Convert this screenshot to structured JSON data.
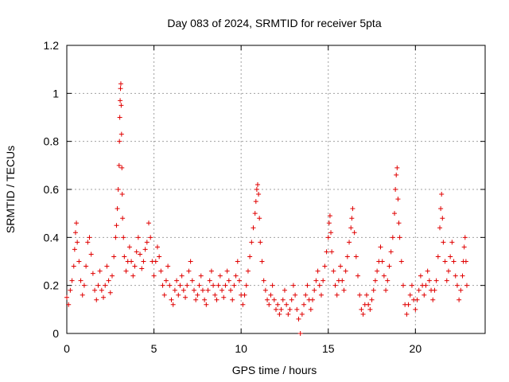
{
  "chart_data": {
    "type": "scatter",
    "title": "Day 083 of 2024, SRMTID for receiver 5pta",
    "xlabel": "GPS time / hours",
    "ylabel": "SRMTID / TECUs",
    "xlim": [
      0,
      24
    ],
    "ylim": [
      0,
      1.2
    ],
    "x_ticks": [
      0,
      5,
      10,
      15,
      20
    ],
    "y_ticks": [
      0,
      0.2,
      0.4,
      0.6,
      0.8,
      1.0,
      1.2
    ],
    "x_tick_labels": [
      "0",
      "5",
      "10",
      "15",
      "20"
    ],
    "y_tick_labels": [
      "0",
      "0.2",
      "0.4",
      "0.6",
      "0.8",
      "1",
      "1.2"
    ],
    "grid": true,
    "marker": "+",
    "series": [
      {
        "name": "SRMTID",
        "color": "#e00000",
        "points": [
          [
            0.0,
            0.15
          ],
          [
            0.1,
            0.12
          ],
          [
            0.2,
            0.18
          ],
          [
            0.3,
            0.22
          ],
          [
            0.4,
            0.28
          ],
          [
            0.45,
            0.35
          ],
          [
            0.5,
            0.42
          ],
          [
            0.55,
            0.46
          ],
          [
            0.6,
            0.38
          ],
          [
            0.7,
            0.3
          ],
          [
            0.8,
            0.22
          ],
          [
            0.9,
            0.16
          ],
          [
            1.0,
            0.2
          ],
          [
            1.1,
            0.28
          ],
          [
            1.2,
            0.38
          ],
          [
            1.3,
            0.4
          ],
          [
            1.4,
            0.33
          ],
          [
            1.5,
            0.25
          ],
          [
            1.6,
            0.18
          ],
          [
            1.7,
            0.14
          ],
          [
            1.8,
            0.2
          ],
          [
            1.9,
            0.26
          ],
          [
            2.0,
            0.18
          ],
          [
            2.1,
            0.15
          ],
          [
            2.2,
            0.2
          ],
          [
            2.3,
            0.28
          ],
          [
            2.4,
            0.22
          ],
          [
            2.5,
            0.17
          ],
          [
            2.6,
            0.24
          ],
          [
            2.7,
            0.32
          ],
          [
            2.8,
            0.4
          ],
          [
            2.85,
            0.45
          ],
          [
            2.9,
            0.52
          ],
          [
            2.95,
            0.6
          ],
          [
            3.0,
            0.7
          ],
          [
            3.02,
            0.8
          ],
          [
            3.04,
            0.9
          ],
          [
            3.06,
            0.97
          ],
          [
            3.08,
            1.02
          ],
          [
            3.1,
            1.04
          ],
          [
            3.12,
            0.95
          ],
          [
            3.14,
            0.83
          ],
          [
            3.16,
            0.69
          ],
          [
            3.18,
            0.58
          ],
          [
            3.2,
            0.48
          ],
          [
            3.25,
            0.4
          ],
          [
            3.3,
            0.32
          ],
          [
            3.4,
            0.26
          ],
          [
            3.5,
            0.3
          ],
          [
            3.6,
            0.36
          ],
          [
            3.7,
            0.3
          ],
          [
            3.8,
            0.24
          ],
          [
            3.9,
            0.28
          ],
          [
            4.0,
            0.34
          ],
          [
            4.1,
            0.4
          ],
          [
            4.2,
            0.33
          ],
          [
            4.3,
            0.27
          ],
          [
            4.4,
            0.3
          ],
          [
            4.5,
            0.35
          ],
          [
            4.6,
            0.38
          ],
          [
            4.7,
            0.46
          ],
          [
            4.8,
            0.4
          ],
          [
            4.9,
            0.3
          ],
          [
            5.0,
            0.24
          ],
          [
            5.1,
            0.3
          ],
          [
            5.2,
            0.36
          ],
          [
            5.3,
            0.32
          ],
          [
            5.4,
            0.26
          ],
          [
            5.5,
            0.2
          ],
          [
            5.6,
            0.16
          ],
          [
            5.7,
            0.22
          ],
          [
            5.8,
            0.28
          ],
          [
            5.9,
            0.2
          ],
          [
            6.0,
            0.14
          ],
          [
            6.1,
            0.12
          ],
          [
            6.2,
            0.18
          ],
          [
            6.3,
            0.22
          ],
          [
            6.4,
            0.16
          ],
          [
            6.5,
            0.2
          ],
          [
            6.6,
            0.24
          ],
          [
            6.7,
            0.18
          ],
          [
            6.8,
            0.15
          ],
          [
            6.9,
            0.2
          ],
          [
            7.0,
            0.26
          ],
          [
            7.1,
            0.3
          ],
          [
            7.2,
            0.22
          ],
          [
            7.3,
            0.18
          ],
          [
            7.4,
            0.14
          ],
          [
            7.5,
            0.16
          ],
          [
            7.6,
            0.2
          ],
          [
            7.7,
            0.24
          ],
          [
            7.8,
            0.18
          ],
          [
            7.9,
            0.14
          ],
          [
            8.0,
            0.12
          ],
          [
            8.1,
            0.18
          ],
          [
            8.2,
            0.22
          ],
          [
            8.3,
            0.26
          ],
          [
            8.4,
            0.2
          ],
          [
            8.5,
            0.16
          ],
          [
            8.6,
            0.14
          ],
          [
            8.7,
            0.2
          ],
          [
            8.8,
            0.24
          ],
          [
            8.9,
            0.18
          ],
          [
            9.0,
            0.15
          ],
          [
            9.1,
            0.2
          ],
          [
            9.2,
            0.26
          ],
          [
            9.3,
            0.22
          ],
          [
            9.4,
            0.18
          ],
          [
            9.5,
            0.14
          ],
          [
            9.6,
            0.2
          ],
          [
            9.7,
            0.24
          ],
          [
            9.8,
            0.3
          ],
          [
            9.9,
            0.22
          ],
          [
            10.0,
            0.16
          ],
          [
            10.1,
            0.12
          ],
          [
            10.2,
            0.16
          ],
          [
            10.3,
            0.2
          ],
          [
            10.4,
            0.26
          ],
          [
            10.5,
            0.32
          ],
          [
            10.6,
            0.38
          ],
          [
            10.7,
            0.44
          ],
          [
            10.8,
            0.5
          ],
          [
            10.85,
            0.55
          ],
          [
            10.9,
            0.6
          ],
          [
            10.95,
            0.62
          ],
          [
            11.0,
            0.58
          ],
          [
            11.05,
            0.48
          ],
          [
            11.1,
            0.38
          ],
          [
            11.2,
            0.3
          ],
          [
            11.3,
            0.22
          ],
          [
            11.4,
            0.18
          ],
          [
            11.5,
            0.14
          ],
          [
            11.6,
            0.12
          ],
          [
            11.7,
            0.16
          ],
          [
            11.8,
            0.2
          ],
          [
            11.9,
            0.14
          ],
          [
            12.0,
            0.1
          ],
          [
            12.1,
            0.12
          ],
          [
            12.2,
            0.08
          ],
          [
            12.3,
            0.1
          ],
          [
            12.4,
            0.14
          ],
          [
            12.5,
            0.18
          ],
          [
            12.6,
            0.12
          ],
          [
            12.7,
            0.08
          ],
          [
            12.8,
            0.1
          ],
          [
            12.9,
            0.14
          ],
          [
            13.0,
            0.2
          ],
          [
            13.1,
            0.16
          ],
          [
            13.2,
            0.1
          ],
          [
            13.3,
            0.06
          ],
          [
            13.4,
            0.0
          ],
          [
            13.5,
            0.08
          ],
          [
            13.6,
            0.12
          ],
          [
            13.7,
            0.16
          ],
          [
            13.8,
            0.2
          ],
          [
            13.9,
            0.14
          ],
          [
            14.0,
            0.1
          ],
          [
            14.1,
            0.14
          ],
          [
            14.2,
            0.18
          ],
          [
            14.3,
            0.22
          ],
          [
            14.4,
            0.26
          ],
          [
            14.5,
            0.2
          ],
          [
            14.6,
            0.16
          ],
          [
            14.7,
            0.22
          ],
          [
            14.8,
            0.28
          ],
          [
            14.9,
            0.34
          ],
          [
            15.0,
            0.4
          ],
          [
            15.05,
            0.46
          ],
          [
            15.1,
            0.49
          ],
          [
            15.15,
            0.42
          ],
          [
            15.2,
            0.34
          ],
          [
            15.3,
            0.26
          ],
          [
            15.4,
            0.2
          ],
          [
            15.5,
            0.16
          ],
          [
            15.6,
            0.22
          ],
          [
            15.7,
            0.28
          ],
          [
            15.8,
            0.22
          ],
          [
            15.9,
            0.18
          ],
          [
            16.0,
            0.26
          ],
          [
            16.1,
            0.32
          ],
          [
            16.2,
            0.38
          ],
          [
            16.3,
            0.44
          ],
          [
            16.35,
            0.48
          ],
          [
            16.4,
            0.52
          ],
          [
            16.5,
            0.42
          ],
          [
            16.6,
            0.32
          ],
          [
            16.7,
            0.24
          ],
          [
            16.8,
            0.16
          ],
          [
            16.9,
            0.1
          ],
          [
            17.0,
            0.08
          ],
          [
            17.1,
            0.12
          ],
          [
            17.2,
            0.16
          ],
          [
            17.3,
            0.12
          ],
          [
            17.4,
            0.1
          ],
          [
            17.5,
            0.14
          ],
          [
            17.6,
            0.18
          ],
          [
            17.7,
            0.22
          ],
          [
            17.8,
            0.26
          ],
          [
            17.9,
            0.3
          ],
          [
            18.0,
            0.36
          ],
          [
            18.1,
            0.3
          ],
          [
            18.2,
            0.24
          ],
          [
            18.3,
            0.18
          ],
          [
            18.4,
            0.22
          ],
          [
            18.5,
            0.28
          ],
          [
            18.6,
            0.34
          ],
          [
            18.7,
            0.4
          ],
          [
            18.8,
            0.5
          ],
          [
            18.85,
            0.6
          ],
          [
            18.9,
            0.66
          ],
          [
            18.95,
            0.69
          ],
          [
            19.0,
            0.56
          ],
          [
            19.05,
            0.46
          ],
          [
            19.1,
            0.4
          ],
          [
            19.2,
            0.3
          ],
          [
            19.3,
            0.2
          ],
          [
            19.4,
            0.12
          ],
          [
            19.5,
            0.08
          ],
          [
            19.6,
            0.12
          ],
          [
            19.7,
            0.16
          ],
          [
            19.8,
            0.2
          ],
          [
            19.9,
            0.14
          ],
          [
            20.0,
            0.1
          ],
          [
            20.1,
            0.14
          ],
          [
            20.2,
            0.18
          ],
          [
            20.3,
            0.24
          ],
          [
            20.4,
            0.2
          ],
          [
            20.5,
            0.16
          ],
          [
            20.6,
            0.2
          ],
          [
            20.7,
            0.26
          ],
          [
            20.8,
            0.22
          ],
          [
            20.9,
            0.18
          ],
          [
            21.0,
            0.14
          ],
          [
            21.1,
            0.18
          ],
          [
            21.2,
            0.22
          ],
          [
            21.3,
            0.32
          ],
          [
            21.4,
            0.44
          ],
          [
            21.45,
            0.52
          ],
          [
            21.5,
            0.58
          ],
          [
            21.55,
            0.48
          ],
          [
            21.6,
            0.38
          ],
          [
            21.7,
            0.3
          ],
          [
            21.8,
            0.22
          ],
          [
            21.9,
            0.26
          ],
          [
            22.0,
            0.32
          ],
          [
            22.1,
            0.38
          ],
          [
            22.2,
            0.3
          ],
          [
            22.3,
            0.24
          ],
          [
            22.4,
            0.2
          ],
          [
            22.5,
            0.14
          ],
          [
            22.6,
            0.18
          ],
          [
            22.7,
            0.24
          ],
          [
            22.75,
            0.3
          ],
          [
            22.8,
            0.36
          ],
          [
            22.85,
            0.4
          ],
          [
            22.9,
            0.3
          ],
          [
            22.95,
            0.2
          ]
        ]
      }
    ]
  }
}
